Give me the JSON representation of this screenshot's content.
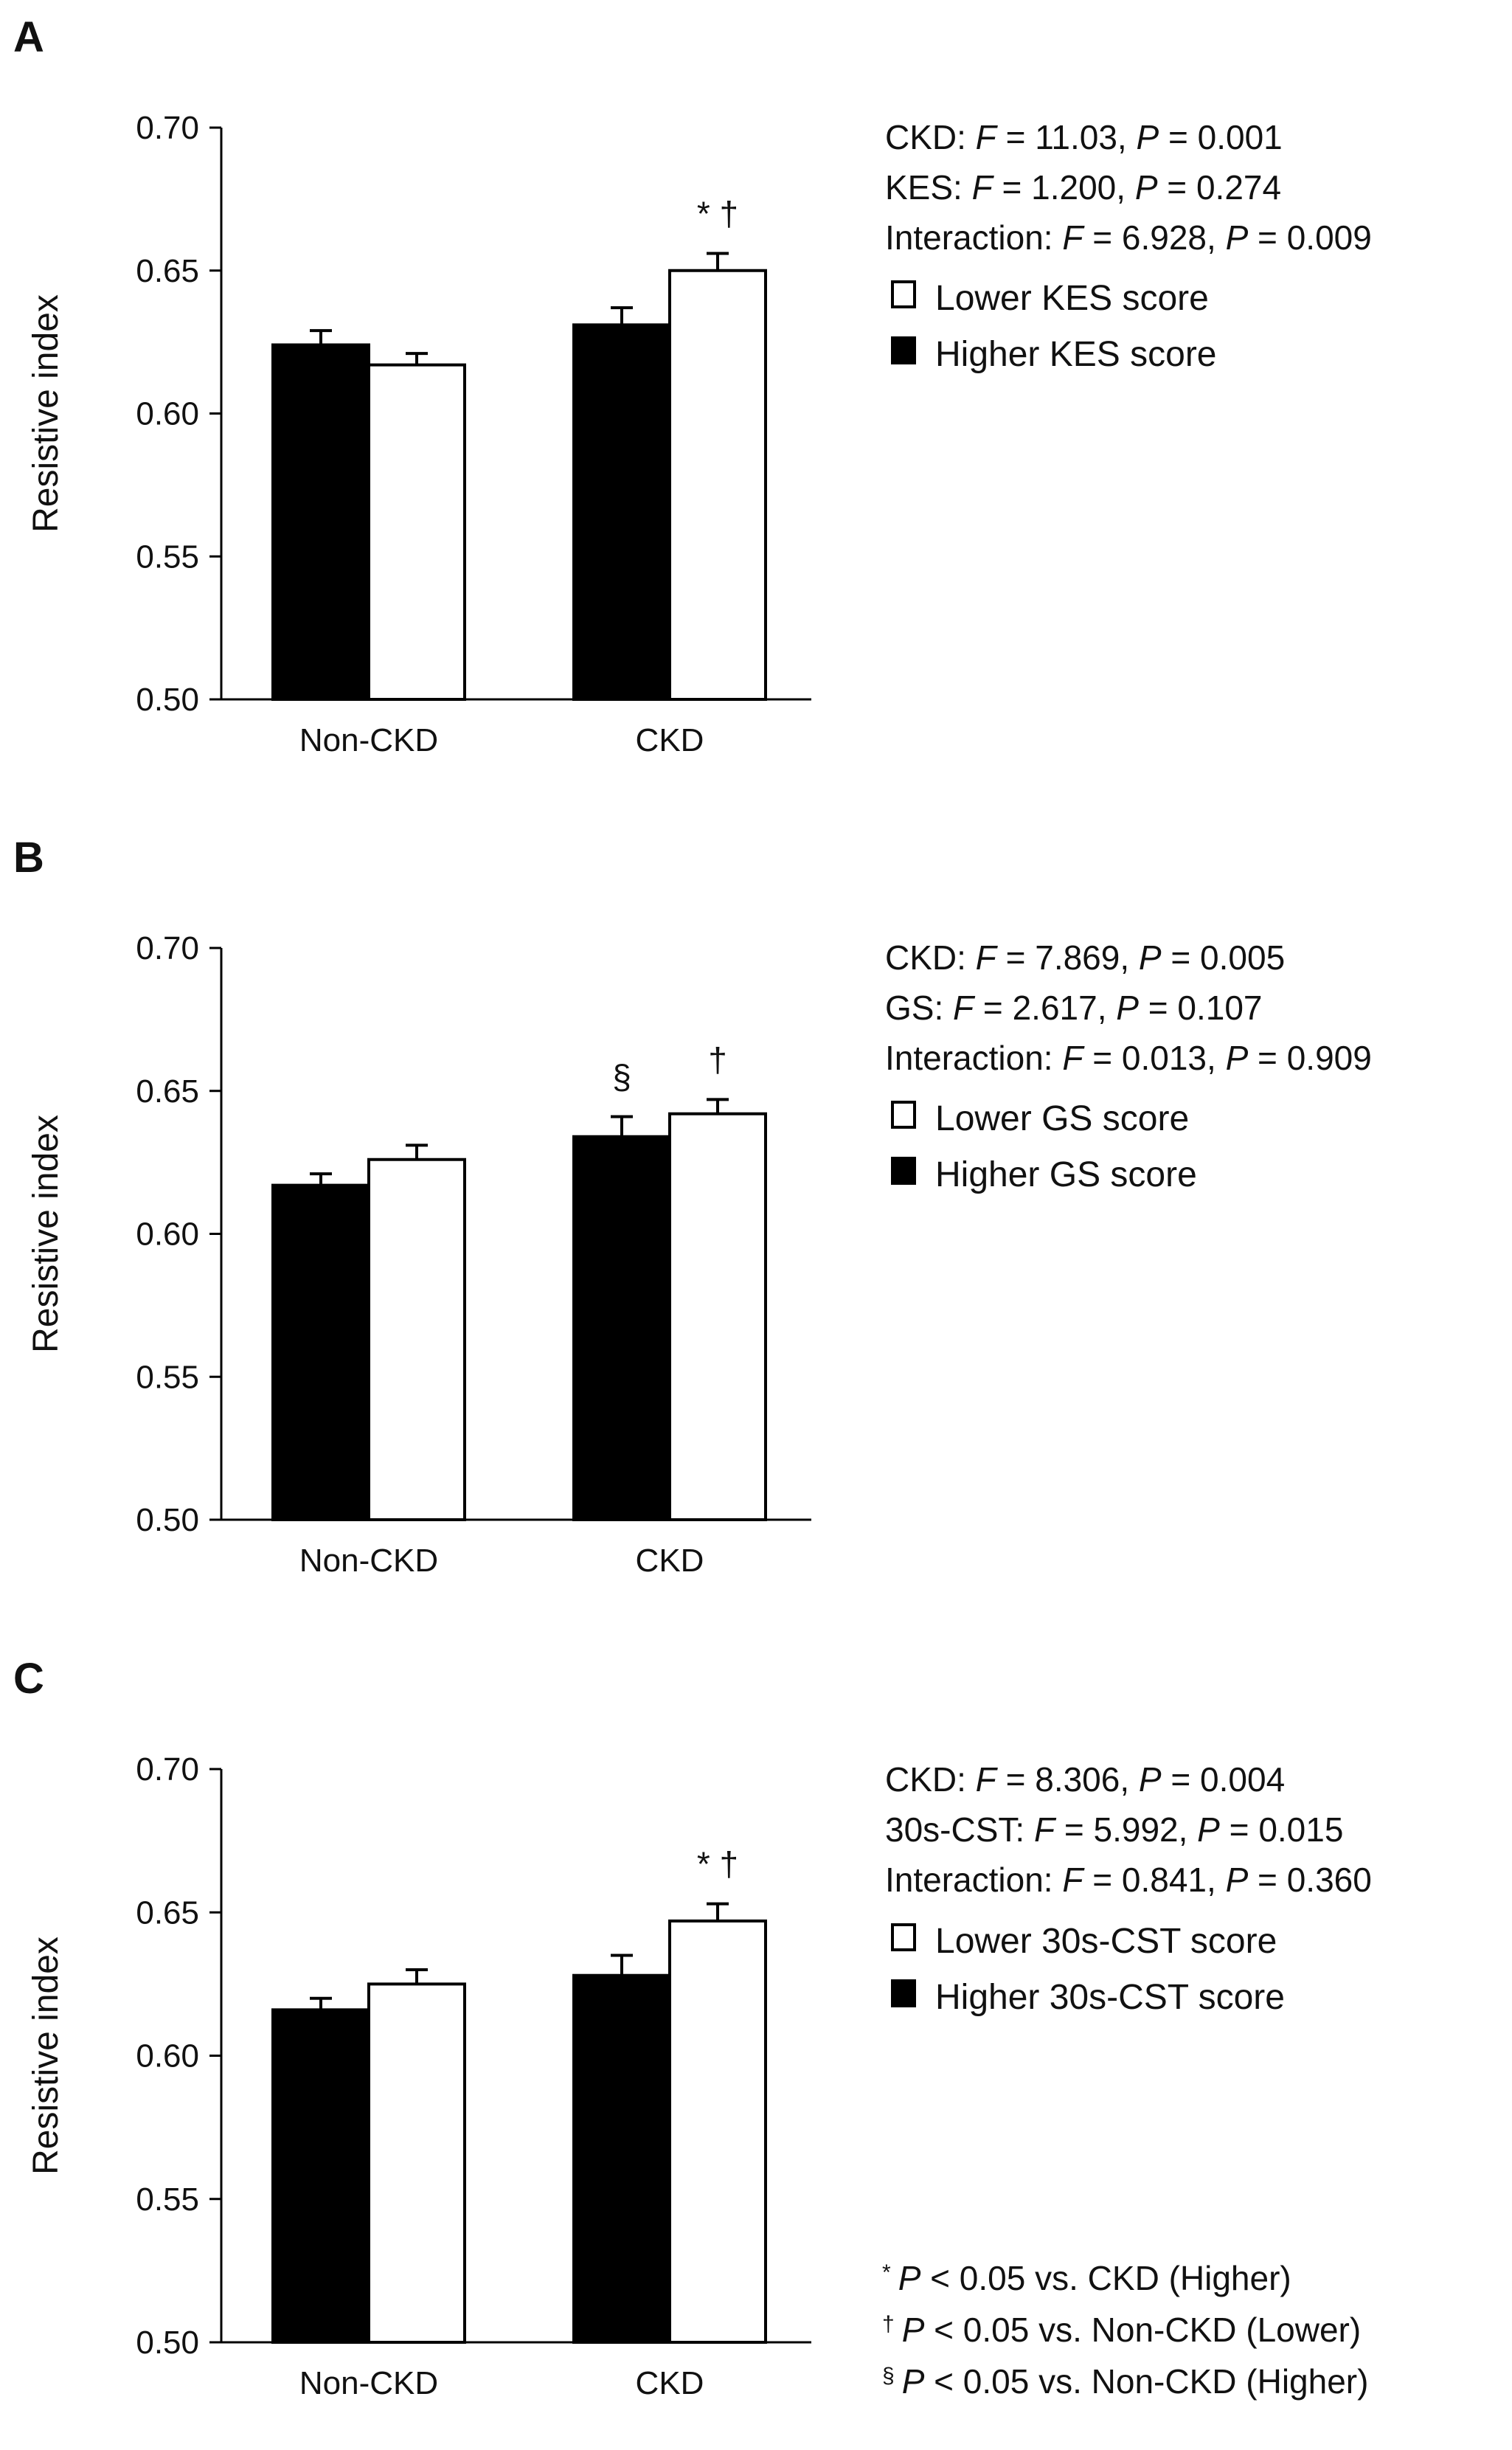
{
  "chart_data": [
    {
      "type": "bar",
      "panel": "A",
      "categories": [
        "Non-CKD",
        "CKD"
      ],
      "ylabel": "Resistive index",
      "ylim": [
        0.5,
        0.7
      ],
      "yticks": [
        "0.70",
        "0.65",
        "0.60",
        "0.55",
        "0.50"
      ],
      "series": [
        {
          "name": "Higher KES score",
          "color": "#000000",
          "values": [
            0.624,
            0.631
          ],
          "errors": [
            0.005,
            0.006
          ]
        },
        {
          "name": "Lower KES score",
          "color": "#ffffff",
          "values": [
            0.617,
            0.65
          ],
          "errors": [
            0.004,
            0.006
          ]
        }
      ],
      "stats": [
        {
          "name": "CKD:",
          "f": "11.03,",
          "p": "0.001"
        },
        {
          "name": "KES:",
          "f": "1.200,",
          "p": "0.274"
        },
        {
          "name": "Interaction:",
          "f": "6.928,",
          "p": "0.009"
        }
      ],
      "annotations": [
        {
          "text": "* †",
          "category": 1,
          "series": 1
        }
      ]
    },
    {
      "type": "bar",
      "panel": "B",
      "categories": [
        "Non-CKD",
        "CKD"
      ],
      "ylabel": "Resistive index",
      "ylim": [
        0.5,
        0.7
      ],
      "yticks": [
        "0.70",
        "0.65",
        "0.60",
        "0.55",
        "0.50"
      ],
      "series": [
        {
          "name": "Higher GS score",
          "color": "#000000",
          "values": [
            0.617,
            0.634
          ],
          "errors": [
            0.004,
            0.007
          ]
        },
        {
          "name": "Lower GS score",
          "color": "#ffffff",
          "values": [
            0.626,
            0.642
          ],
          "errors": [
            0.005,
            0.005
          ]
        }
      ],
      "stats": [
        {
          "name": "CKD:",
          "f": "7.869,",
          "p": "0.005"
        },
        {
          "name": "GS:",
          "f": "2.617,",
          "p": "0.107"
        },
        {
          "name": "Interaction:",
          "f": "0.013,",
          "p": "0.909"
        }
      ],
      "annotations": [
        {
          "text": "§",
          "category": 1,
          "series": 0
        },
        {
          "text": "†",
          "category": 1,
          "series": 1
        }
      ]
    },
    {
      "type": "bar",
      "panel": "C",
      "categories": [
        "Non-CKD",
        "CKD"
      ],
      "ylabel": "Resistive index",
      "ylim": [
        0.5,
        0.7
      ],
      "yticks": [
        "0.70",
        "0.65",
        "0.60",
        "0.55",
        "0.50"
      ],
      "series": [
        {
          "name": "Higher 30s-CST score",
          "color": "#000000",
          "values": [
            0.616,
            0.628
          ],
          "errors": [
            0.004,
            0.007
          ]
        },
        {
          "name": "Lower 30s-CST score",
          "color": "#ffffff",
          "values": [
            0.625,
            0.647
          ],
          "errors": [
            0.005,
            0.006
          ]
        }
      ],
      "stats": [
        {
          "name": "CKD:",
          "f": "8.306,",
          "p": "0.004"
        },
        {
          "name": "30s-CST:",
          "f": "5.992,",
          "p": "0.015"
        },
        {
          "name": "Interaction:",
          "f": "0.841,",
          "p": "0.360"
        }
      ],
      "annotations": [
        {
          "text": "* †",
          "category": 1,
          "series": 1
        }
      ]
    }
  ],
  "stat_symbols": {
    "f": "F",
    "p": "P",
    "eq": "="
  },
  "footnotes": [
    {
      "mark": "*",
      "p": "P",
      "text": "< 0.05 vs. CKD (Higher)"
    },
    {
      "mark": "†",
      "p": "P",
      "text": "< 0.05 vs. Non-CKD (Lower)"
    },
    {
      "mark": "§",
      "p": "P",
      "text": "< 0.05 vs. Non-CKD (Higher)"
    }
  ]
}
